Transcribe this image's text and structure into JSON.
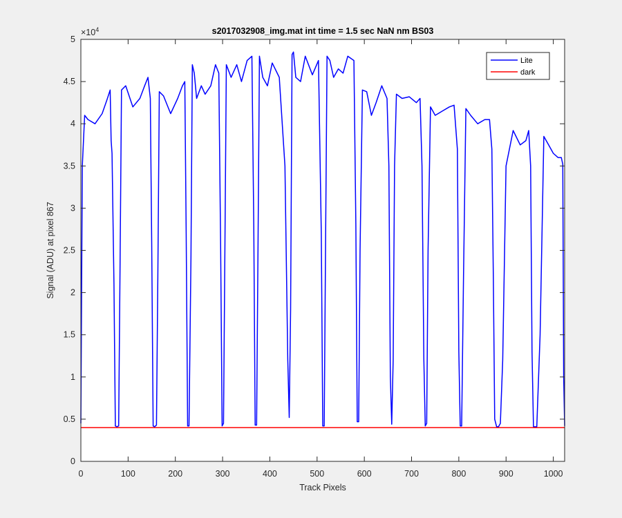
{
  "chart_data": {
    "type": "line",
    "title": "s2017032908_img.mat int time = 1.5 sec  NaN nm BS03",
    "xlabel": "Track Pixels",
    "ylabel": "Signal (ADU) at pixel 867",
    "y_multiplier_label": "×10",
    "y_multiplier_exponent": "4",
    "xlim": [
      0,
      1024
    ],
    "ylim": [
      0,
      5
    ],
    "x_ticks": [
      "0",
      "100",
      "200",
      "300",
      "400",
      "500",
      "600",
      "700",
      "800",
      "900",
      "1000"
    ],
    "y_ticks": [
      "0",
      "0.5",
      "1",
      "1.5",
      "2",
      "2.5",
      "3",
      "3.5",
      "4",
      "4.5",
      "5"
    ],
    "grid": false,
    "legend_position": "top-right",
    "series": [
      {
        "name": "Lite",
        "color": "#0000ff",
        "x": [
          0,
          3,
          8,
          15,
          30,
          45,
          55,
          62,
          64,
          66,
          70,
          73,
          76,
          80,
          83,
          86,
          95,
          110,
          125,
          135,
          142,
          147,
          150,
          153,
          156,
          160,
          163,
          166,
          175,
          190,
          205,
          215,
          220,
          223,
          226,
          229,
          233,
          236,
          240,
          245,
          255,
          263,
          275,
          285,
          292,
          296,
          299,
          302,
          305,
          308,
          318,
          330,
          340,
          352,
          362,
          366,
          369,
          372,
          375,
          378,
          385,
          395,
          405,
          420,
          432,
          438,
          441,
          444,
          447,
          450,
          455,
          465,
          475,
          490,
          503,
          509,
          512,
          515,
          518,
          521,
          527,
          535,
          545,
          555,
          565,
          578,
          582,
          585,
          588,
          591,
          596,
          605,
          615,
          625,
          637,
          648,
          652,
          655,
          658,
          661,
          664,
          668,
          680,
          695,
          710,
          718,
          722,
          726,
          729,
          732,
          735,
          740,
          750,
          765,
          780,
          790,
          797,
          800,
          803,
          806,
          810,
          815,
          825,
          840,
          855,
          865,
          870,
          873,
          876,
          880,
          884,
          888,
          893,
          900,
          915,
          930,
          942,
          948,
          952,
          955,
          958,
          961,
          965,
          972,
          980,
          990,
          1000,
          1010,
          1017,
          1020,
          1022,
          1024
        ],
        "y": [
          0.45,
          3.5,
          4.1,
          4.05,
          4.0,
          4.12,
          4.28,
          4.4,
          3.8,
          3.65,
          2.1,
          0.42,
          0.41,
          0.42,
          2.3,
          4.4,
          4.45,
          4.2,
          4.3,
          4.45,
          4.55,
          4.3,
          2.6,
          0.42,
          0.41,
          0.43,
          2.2,
          4.38,
          4.33,
          4.12,
          4.3,
          4.45,
          4.5,
          2.7,
          0.42,
          0.42,
          2.4,
          4.7,
          4.6,
          4.3,
          4.45,
          4.35,
          4.45,
          4.7,
          4.6,
          2.5,
          0.42,
          0.45,
          2.6,
          4.7,
          4.55,
          4.7,
          4.5,
          4.75,
          4.8,
          2.8,
          0.43,
          0.43,
          2.5,
          4.8,
          4.55,
          4.45,
          4.72,
          4.55,
          3.5,
          1.2,
          0.52,
          1.8,
          4.82,
          4.85,
          4.55,
          4.5,
          4.8,
          4.58,
          4.75,
          2.7,
          0.42,
          0.42,
          2.6,
          4.8,
          4.75,
          4.55,
          4.65,
          4.6,
          4.8,
          4.75,
          2.8,
          0.47,
          0.47,
          2.5,
          4.4,
          4.38,
          4.1,
          4.25,
          4.45,
          4.3,
          3.5,
          1.0,
          0.44,
          1.2,
          3.5,
          4.35,
          4.3,
          4.32,
          4.25,
          4.3,
          3.5,
          1.2,
          0.42,
          0.45,
          2.5,
          4.2,
          4.1,
          4.15,
          4.2,
          4.22,
          3.7,
          1.3,
          0.42,
          0.42,
          2.2,
          4.18,
          4.1,
          4.0,
          4.05,
          4.05,
          3.7,
          2.2,
          0.5,
          0.41,
          0.41,
          0.45,
          1.2,
          3.5,
          3.92,
          3.75,
          3.8,
          3.92,
          3.5,
          1.3,
          0.41,
          0.41,
          0.41,
          1.5,
          3.85,
          3.75,
          3.65,
          3.6,
          3.6,
          3.52,
          1.0,
          0.42
        ]
      },
      {
        "name": "dark",
        "color": "#ff0000",
        "x": [
          0,
          1024
        ],
        "y": [
          0.4,
          0.4
        ]
      }
    ]
  }
}
